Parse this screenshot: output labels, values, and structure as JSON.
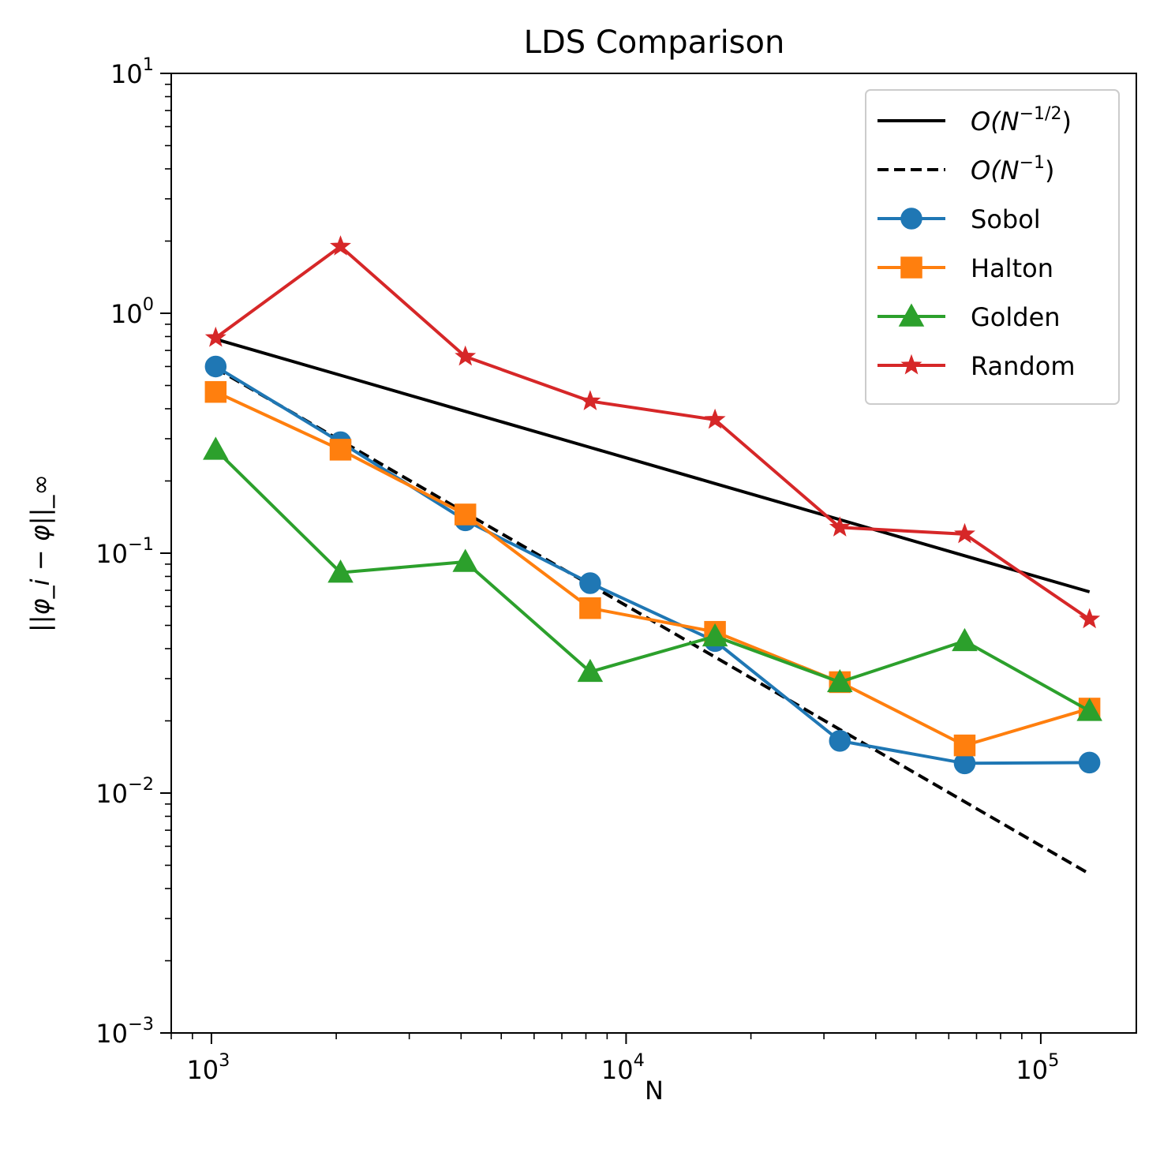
{
  "chart_data": {
    "type": "line",
    "title": "LDS Comparison",
    "xlabel": "N",
    "ylabel": "||φ_i − φ||_∞",
    "xscale": "log",
    "yscale": "log",
    "xlim": [
      800,
      170000
    ],
    "ylim": [
      0.001,
      10
    ],
    "grid": false,
    "legend_position": "top-right",
    "x_ticks": [
      {
        "value": 1000,
        "base": "10",
        "exp": "3"
      },
      {
        "value": 10000,
        "base": "10",
        "exp": "4"
      },
      {
        "value": 100000,
        "base": "10",
        "exp": "5"
      }
    ],
    "y_ticks": [
      {
        "value": 10,
        "base": "10",
        "exp": "1"
      },
      {
        "value": 1,
        "base": "10",
        "exp": "0"
      },
      {
        "value": 0.1,
        "base": "10",
        "exp": "−1"
      },
      {
        "value": 0.01,
        "base": "10",
        "exp": "−2"
      },
      {
        "value": 0.001,
        "base": "10",
        "exp": "−3"
      }
    ],
    "x": [
      1024,
      2048,
      4096,
      8192,
      16384,
      32768,
      65536,
      131072
    ],
    "series": [
      {
        "name": "O(N^(-1/2))",
        "label_main": "O(N",
        "label_sup": "−1/2",
        "label_end": ")",
        "style": "solid",
        "marker": "none",
        "color": "#000000",
        "values": [
          0.78,
          0.552,
          0.39,
          0.276,
          0.195,
          0.138,
          0.0975,
          0.069
        ]
      },
      {
        "name": "O(N^(-1))",
        "label_main": "O(N",
        "label_sup": "−1",
        "label_end": ")",
        "style": "dashed",
        "marker": "none",
        "color": "#000000",
        "values": [
          0.59,
          0.295,
          0.1475,
          0.0738,
          0.0369,
          0.0184,
          0.0092,
          0.0046
        ]
      },
      {
        "name": "Sobol",
        "label_main": "Sobol",
        "style": "solid",
        "marker": "circle",
        "color": "#1f77b4",
        "values": [
          0.6,
          0.29,
          0.137,
          0.075,
          0.043,
          0.0165,
          0.0133,
          0.0134
        ]
      },
      {
        "name": "Halton",
        "label_main": "Halton",
        "style": "solid",
        "marker": "square",
        "color": "#ff7f0e",
        "values": [
          0.47,
          0.27,
          0.145,
          0.059,
          0.047,
          0.029,
          0.0158,
          0.0225
        ]
      },
      {
        "name": "Golden",
        "label_main": "Golden",
        "style": "solid",
        "marker": "triangle",
        "color": "#2ca02c",
        "values": [
          0.27,
          0.083,
          0.092,
          0.032,
          0.045,
          0.029,
          0.043,
          0.022
        ]
      },
      {
        "name": "Random",
        "label_main": "Random",
        "style": "solid",
        "marker": "star",
        "color": "#d62728",
        "values": [
          0.79,
          1.9,
          0.66,
          0.43,
          0.36,
          0.128,
          0.12,
          0.053
        ]
      }
    ]
  }
}
